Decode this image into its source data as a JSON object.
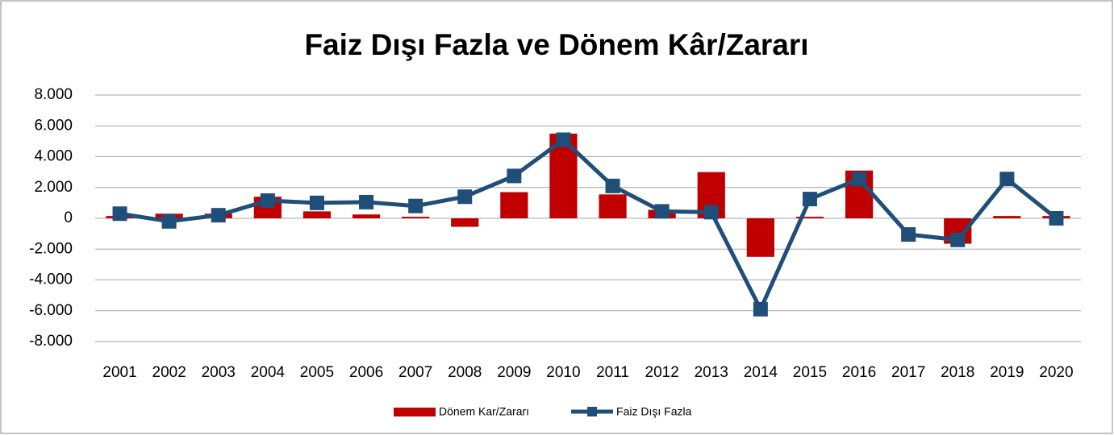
{
  "chart_data": {
    "type": "bar_line",
    "title": "Faiz Dışı Fazla ve Dönem Kâr/Zararı",
    "categories": [
      "2001",
      "2002",
      "2003",
      "2004",
      "2005",
      "2006",
      "2007",
      "2008",
      "2009",
      "2010",
      "2011",
      "2012",
      "2013",
      "2014",
      "2015",
      "2016",
      "2017",
      "2018",
      "2019",
      "2020"
    ],
    "series": [
      {
        "name": "Dönem Kar/Zararı",
        "type": "bar",
        "color": "#c00000",
        "values": [
          150,
          300,
          300,
          1400,
          450,
          250,
          100,
          -550,
          1700,
          5500,
          1550,
          550,
          3000,
          -2500,
          100,
          3100,
          0,
          -1650,
          150,
          150
        ]
      },
      {
        "name": "Faiz Dışı Fazla",
        "type": "line",
        "color": "#1f4e79",
        "values": [
          300,
          -200,
          200,
          1150,
          1000,
          1050,
          800,
          1400,
          2750,
          5100,
          2100,
          450,
          400,
          -5900,
          1250,
          2550,
          -1050,
          -1400,
          2550,
          0
        ]
      }
    ],
    "ylim": [
      -8000,
      8000
    ],
    "yticks": [
      {
        "value": -8000,
        "label": "-8.000"
      },
      {
        "value": -6000,
        "label": "-6.000"
      },
      {
        "value": -4000,
        "label": "-4.000"
      },
      {
        "value": -2000,
        "label": "-2.000"
      },
      0,
      {
        "value": 2000,
        "label": "2.000"
      },
      {
        "value": 4000,
        "label": "4.000"
      },
      {
        "value": 6000,
        "label": "6.000"
      },
      {
        "value": 8000,
        "label": "8.000"
      }
    ],
    "grid": true,
    "legend": "bottom"
  }
}
